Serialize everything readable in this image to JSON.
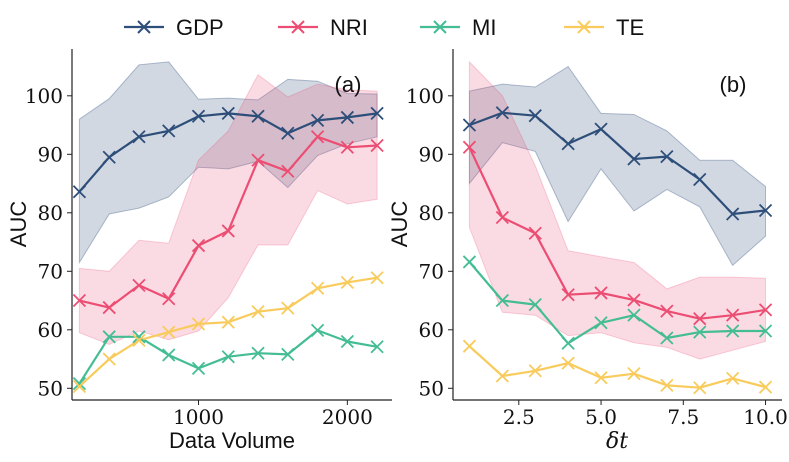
{
  "legend": {
    "entries": [
      {
        "name": "GDP",
        "color": "#2e4e7a"
      },
      {
        "name": "NRI",
        "color": "#ec4d73"
      },
      {
        "name": "MI",
        "color": "#45bd94"
      },
      {
        "name": "TE",
        "color": "#f8cb5c"
      }
    ]
  },
  "chart_data": [
    {
      "type": "line",
      "panel_label": "(a)",
      "xlabel": "Data Volume",
      "ylabel": "AUC",
      "xlim": [
        150,
        2300
      ],
      "ylim": [
        48,
        108
      ],
      "xticks": [
        1000,
        2000
      ],
      "yticks": [
        50,
        60,
        70,
        80,
        90,
        100
      ],
      "x": [
        200,
        400,
        600,
        800,
        1000,
        1200,
        1400,
        1600,
        1800,
        2000,
        2200
      ],
      "series": [
        {
          "name": "GDP",
          "color": "#2e4e7a",
          "values": [
            83.6,
            89.5,
            93.0,
            94.0,
            96.5,
            97.0,
            96.5,
            93.6,
            95.8,
            96.3,
            97.0
          ],
          "lower": [
            71.5,
            79.8,
            80.8,
            82.7,
            87.8,
            87.5,
            88.8,
            84.3,
            89.8,
            91.8,
            93.0
          ],
          "upper": [
            96.0,
            99.5,
            105.3,
            105.8,
            99.4,
            99.6,
            99.3,
            102.8,
            102.5,
            100.4,
            100.3
          ]
        },
        {
          "name": "NRI",
          "color": "#ec4d73",
          "values": [
            65.0,
            63.8,
            67.6,
            65.3,
            74.4,
            76.9,
            89.0,
            87.1,
            93.0,
            91.2,
            91.5
          ],
          "lower": [
            59.5,
            57.5,
            59.8,
            58.3,
            59.8,
            65.5,
            74.5,
            74.5,
            83.8,
            81.5,
            82.3
          ],
          "upper": [
            70.5,
            70.0,
            75.3,
            74.8,
            89.0,
            94.0,
            103.6,
            99.8,
            102.0,
            101.0,
            100.8
          ]
        },
        {
          "name": "MI",
          "color": "#45bd94",
          "values": [
            50.8,
            58.8,
            58.8,
            55.7,
            53.4,
            55.4,
            56.0,
            55.8,
            59.9,
            58.0,
            57.1
          ],
          "lower": null,
          "upper": null
        },
        {
          "name": "TE",
          "color": "#f8cb5c",
          "values": [
            50.3,
            55.0,
            58.2,
            59.6,
            61.0,
            61.3,
            63.1,
            63.7,
            67.1,
            68.1,
            68.9
          ],
          "lower": null,
          "upper": null
        }
      ]
    },
    {
      "type": "line",
      "panel_label": "(b)",
      "xlabel": "δt",
      "ylabel": "AUC",
      "xlim": [
        0.5,
        10.5
      ],
      "ylim": [
        48,
        108
      ],
      "xticks": [
        2.5,
        5.0,
        7.5,
        10.0
      ],
      "xtick_labels": [
        "2.5",
        "5.0",
        "7.5",
        "10.0"
      ],
      "yticks": [
        50,
        60,
        70,
        80,
        90,
        100
      ],
      "x": [
        1,
        2,
        3,
        4,
        5,
        6,
        7,
        8,
        9,
        10
      ],
      "series": [
        {
          "name": "GDP",
          "color": "#2e4e7a",
          "values": [
            95.0,
            97.1,
            96.6,
            91.8,
            94.3,
            89.2,
            89.6,
            85.7,
            79.8,
            80.4
          ],
          "lower": [
            85.0,
            92.0,
            90.5,
            78.5,
            87.5,
            80.3,
            84.0,
            81.0,
            71.0,
            76.0
          ],
          "upper": [
            100.8,
            102.0,
            101.5,
            105.0,
            97.0,
            96.8,
            94.0,
            89.0,
            89.0,
            84.5
          ]
        },
        {
          "name": "NRI",
          "color": "#ec4d73",
          "values": [
            91.2,
            79.2,
            76.5,
            66.0,
            66.3,
            65.1,
            63.2,
            61.9,
            62.5,
            63.4
          ],
          "lower": [
            77.5,
            63.0,
            62.5,
            59.0,
            59.5,
            57.8,
            57.0,
            55.0,
            56.5,
            58.0
          ],
          "upper": [
            105.8,
            100.0,
            88.0,
            73.5,
            72.5,
            71.5,
            67.0,
            69.0,
            69.0,
            68.8
          ]
        },
        {
          "name": "MI",
          "color": "#45bd94",
          "values": [
            71.6,
            65.0,
            64.3,
            57.7,
            61.2,
            62.5,
            58.6,
            59.6,
            59.8,
            59.8
          ],
          "lower": null,
          "upper": null
        },
        {
          "name": "TE",
          "color": "#f8cb5c",
          "values": [
            57.2,
            52.1,
            53.0,
            54.3,
            51.8,
            52.5,
            50.5,
            50.1,
            51.7,
            50.2
          ],
          "lower": null,
          "upper": null
        }
      ]
    }
  ]
}
